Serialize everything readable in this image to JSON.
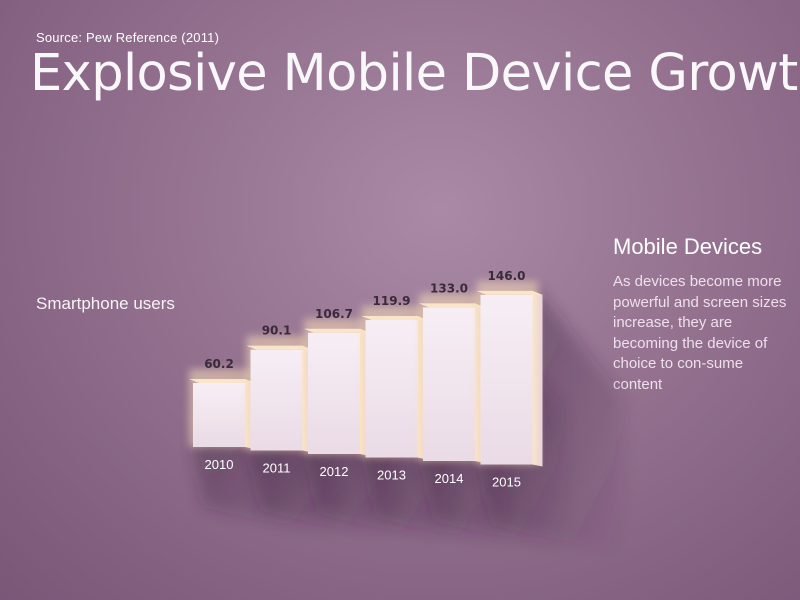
{
  "header": {
    "source": "Source: Pew Reference (2011)",
    "title": "Explosive Mobile Device Growth"
  },
  "sidebar": {
    "title": "Mobile Devices",
    "text": "As devices become more powerful and screen sizes increase, they are becoming the device of choice to con-sume content"
  },
  "chart_data": {
    "type": "bar",
    "categories": [
      "2010",
      "2011",
      "2012",
      "2013",
      "2014",
      "2015"
    ],
    "series": [
      {
        "name": "Smartphone users",
        "values": [
          60.2,
          90.1,
          106.7,
          119.9,
          133.0,
          146.0
        ]
      }
    ],
    "data_labels": [
      "60.2",
      "90.1",
      "106.7",
      "119.9",
      "133.0",
      "146.0"
    ],
    "title": "Explosive Mobile Device Growth",
    "xlabel": "",
    "ylabel": "",
    "grid": false,
    "colors": {
      "bar": "#f3e8f1",
      "bar_glow": "#f7ddb8",
      "background": "#93718f"
    }
  }
}
